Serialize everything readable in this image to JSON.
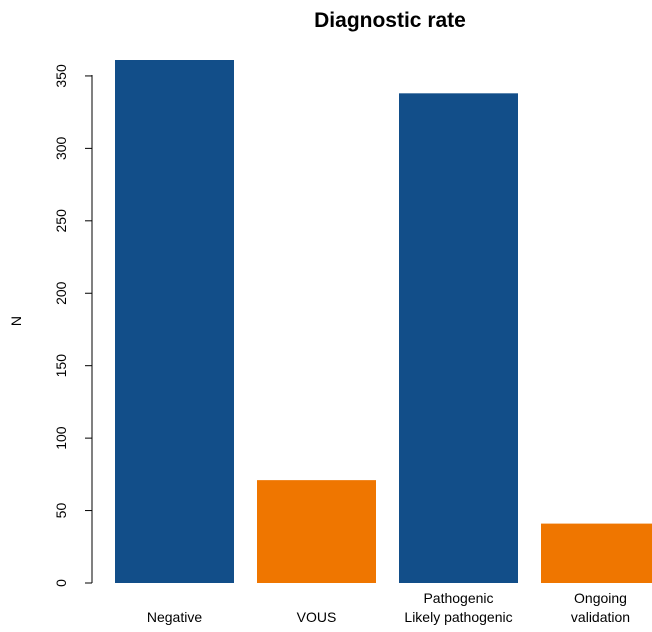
{
  "chart_data": {
    "type": "bar",
    "title": "Diagnostic rate",
    "xlabel": "",
    "ylabel": "N",
    "categories": [
      [
        "Negative"
      ],
      [
        "VOUS"
      ],
      [
        "Pathogenic",
        "Likely pathogenic"
      ],
      [
        "Ongoing",
        "validation"
      ]
    ],
    "values": [
      361,
      71,
      338,
      41
    ],
    "colors": [
      "#124e89",
      "#ef7600",
      "#124e89",
      "#ef7600"
    ],
    "ylim": [
      0,
      361
    ],
    "yticks": [
      0,
      50,
      100,
      150,
      200,
      250,
      300,
      350
    ],
    "grid": false,
    "legend": "none"
  }
}
